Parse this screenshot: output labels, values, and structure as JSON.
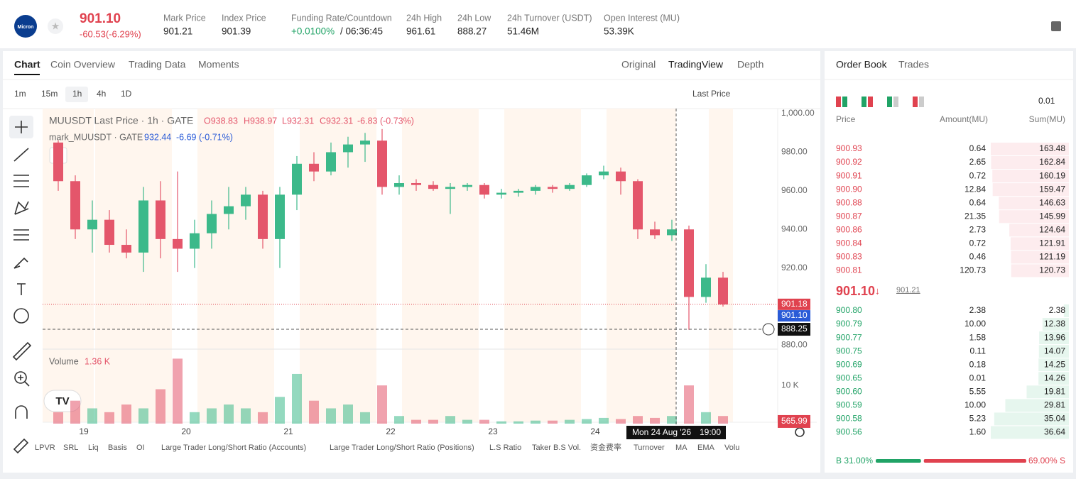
{
  "header": {
    "logo": "Micron",
    "price": "901.10",
    "change": "-60.53(-6.29%)",
    "stats": [
      {
        "label": "Mark Price",
        "value": "901.21"
      },
      {
        "label": "Index Price",
        "value": "901.39"
      },
      {
        "label": "Funding Rate/Countdown",
        "value": "+0.0100%",
        "extra": "/ 06:36:45"
      },
      {
        "label": "24h High",
        "value": "961.61"
      },
      {
        "label": "24h Low",
        "value": "888.27"
      },
      {
        "label": "24h Turnover (USDT)",
        "value": "51.46M"
      },
      {
        "label": "Open Interest (MU)",
        "value": "53.39K"
      }
    ]
  },
  "tabs": [
    "Chart",
    "Coin Overview",
    "Trading Data",
    "Moments"
  ],
  "views": [
    "Original",
    "TradingView",
    "Depth"
  ],
  "intervals": [
    "1m",
    "15m",
    "1h",
    "4h",
    "1D"
  ],
  "price_source": "Last Price",
  "indicators": [
    "LPVR",
    "SRL",
    "Liq",
    "Basis",
    "OI",
    "Large Trader Long/Short Ratio (Accounts)",
    "Large Trader Long/Short Ratio (Positions)",
    "L.S Ratio",
    "Taker B.S Vol.",
    "资金费率",
    "Turnover",
    "MA",
    "EMA",
    "Volu"
  ],
  "chart_data": {
    "type": "candlestick",
    "title": "MUUSDT Last Price · 1h · GATE",
    "ohlc_readout": [
      "O938.83",
      "H938.97",
      "L932.31",
      "C932.31",
      "-6.83 (-0.73%)"
    ],
    "mark_title": "mark_MUUSDT · GATE",
    "mark_readout": [
      "932.44",
      "-6.69 (-0.71%)"
    ],
    "up_color": "#3cb98a",
    "down_color": "#e4566b",
    "categories": [
      null,
      null,
      "19",
      null,
      null,
      null,
      null,
      null,
      "20",
      null,
      null,
      null,
      null,
      null,
      "21",
      null,
      null,
      null,
      null,
      null,
      "22",
      null,
      null,
      null,
      null,
      null,
      "23",
      null,
      null,
      null,
      null,
      null,
      "24",
      null,
      null,
      null,
      null,
      null,
      null,
      null
    ],
    "candles": [
      [
        985,
        986,
        960,
        965
      ],
      [
        965,
        968,
        935,
        940
      ],
      [
        940,
        955,
        928,
        945
      ],
      [
        945,
        950,
        928,
        932
      ],
      [
        932,
        940,
        925,
        928
      ],
      [
        928,
        962,
        918,
        955
      ],
      [
        955,
        965,
        925,
        935
      ],
      [
        935,
        970,
        918,
        930
      ],
      [
        930,
        945,
        920,
        938
      ],
      [
        938,
        955,
        930,
        948
      ],
      [
        948,
        962,
        940,
        952
      ],
      [
        952,
        962,
        945,
        958
      ],
      [
        958,
        960,
        930,
        935
      ],
      [
        935,
        962,
        920,
        958
      ],
      [
        958,
        978,
        950,
        974
      ],
      [
        974,
        980,
        965,
        970
      ],
      [
        970,
        985,
        968,
        980
      ],
      [
        980,
        988,
        972,
        984
      ],
      [
        984,
        990,
        975,
        986
      ],
      [
        986,
        992,
        958,
        962
      ],
      [
        962,
        968,
        958,
        964
      ],
      [
        964,
        966,
        960,
        963
      ],
      [
        963,
        965,
        960,
        961
      ],
      [
        961,
        964,
        948,
        962
      ],
      [
        962,
        964,
        960,
        963
      ],
      [
        963,
        964,
        956,
        958
      ],
      [
        958,
        961,
        956,
        959
      ],
      [
        959,
        961,
        957,
        960
      ],
      [
        960,
        963,
        958,
        962
      ],
      [
        962,
        963,
        959,
        961
      ],
      [
        961,
        964,
        960,
        963
      ],
      [
        963,
        969,
        962,
        968
      ],
      [
        968,
        973,
        966,
        970
      ],
      [
        970,
        972,
        958,
        965
      ],
      [
        965,
        966,
        935,
        940
      ],
      [
        940,
        944,
        935,
        937
      ],
      [
        937,
        945,
        934,
        940
      ],
      [
        940,
        942,
        888,
        905
      ],
      [
        905,
        922,
        902,
        915
      ],
      [
        915,
        918,
        900,
        901.1
      ]
    ],
    "ylim": [
      878.7,
      1002.6
    ],
    "yticks": [
      {
        "value": 1000,
        "label": "1,000.00"
      },
      {
        "value": 980,
        "label": "980.00"
      },
      {
        "value": 960,
        "label": "960.00"
      },
      {
        "value": 940,
        "label": "940.00"
      },
      {
        "value": 920,
        "label": "920.00"
      },
      {
        "value": 880,
        "label": "880.00"
      }
    ],
    "mark_price": 901.18,
    "last_price": {
      "value": 901.1,
      "label": "901.10"
    },
    "crosshair": {
      "price": 888.25,
      "date": "Mon 24 Aug '26",
      "time": "19:00"
    },
    "volume_title": "Volume",
    "volume_readout": "1.36 K",
    "volume": [
      3,
      6,
      4,
      3,
      5,
      4,
      9,
      17,
      3,
      4,
      5,
      4,
      3,
      7,
      13,
      6,
      4,
      5,
      3,
      10,
      2,
      1,
      1,
      2,
      1,
      1,
      0.6,
      0.6,
      0.8,
      0.8,
      1,
      1.2,
      1.5,
      1.2,
      2,
      1.5,
      2,
      10,
      3,
      2
    ],
    "vlim": [
      0,
      19.3
    ],
    "vticks": [
      {
        "value": 10,
        "label": "10 K"
      }
    ],
    "volume_last": {
      "value": 0.56599,
      "label": "565.99"
    }
  },
  "order_book": {
    "tabs": [
      "Order Book",
      "Trades"
    ],
    "precision": "0.01",
    "columns": [
      "Price",
      "Amount(MU)",
      "Sum(MU)"
    ],
    "asks": [
      [
        "900.93",
        "0.64",
        163.48
      ],
      [
        "900.92",
        "2.65",
        162.84
      ],
      [
        "900.91",
        "0.72",
        160.19
      ],
      [
        "900.90",
        "12.84",
        159.47
      ],
      [
        "900.88",
        "0.64",
        146.63
      ],
      [
        "900.87",
        "21.35",
        145.99
      ],
      [
        "900.86",
        "2.73",
        124.64
      ],
      [
        "900.84",
        "0.72",
        121.91
      ],
      [
        "900.83",
        "0.46",
        121.19
      ],
      [
        "900.81",
        "120.73",
        120.73
      ]
    ],
    "mid_price": "901.10",
    "mid_mark": "901.21",
    "bids": [
      [
        "900.80",
        "2.38",
        2.38
      ],
      [
        "900.79",
        "10.00",
        12.38
      ],
      [
        "900.77",
        "1.58",
        13.96
      ],
      [
        "900.75",
        "0.11",
        14.07
      ],
      [
        "900.69",
        "0.18",
        14.25
      ],
      [
        "900.65",
        "0.01",
        14.26
      ],
      [
        "900.60",
        "5.55",
        19.81
      ],
      [
        "900.59",
        "10.00",
        29.81
      ],
      [
        "900.58",
        "5.23",
        35.04
      ],
      [
        "900.56",
        "1.60",
        36.64
      ]
    ],
    "buy": {
      "value": 31,
      "label": "B 31.00%"
    },
    "sell": {
      "value": 69,
      "label": "69.00% S"
    }
  }
}
